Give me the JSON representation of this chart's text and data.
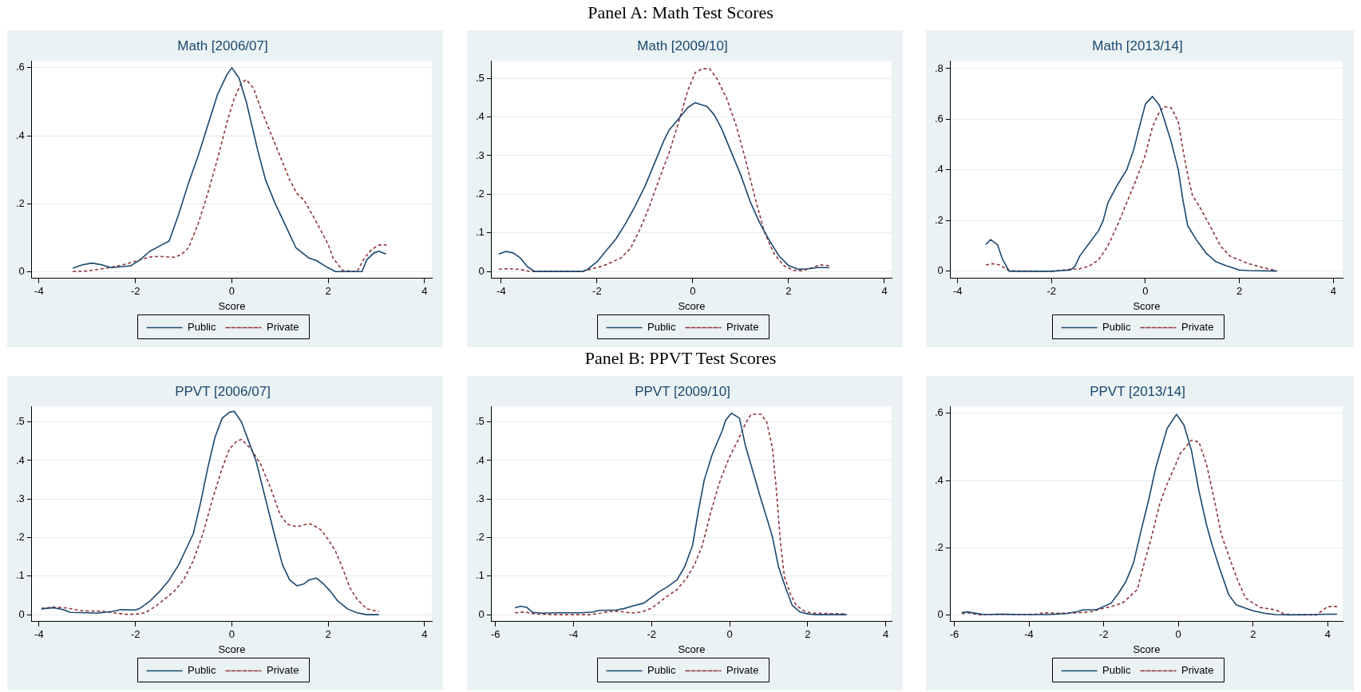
{
  "chart_data": [
    {
      "type": "line",
      "title": "Math [2006/07]",
      "xlabel": "Score",
      "annotations": [
        "Panel A: Math Test Scores"
      ],
      "xlim": [
        -4.15,
        4.15
      ],
      "xticks": [
        -4,
        -2,
        0,
        2,
        4
      ],
      "ylim": [
        -0.02,
        0.62
      ],
      "yticks": [
        {
          "value": 0,
          "label": "0"
        },
        {
          "value": 0.2,
          "label": ".2"
        },
        {
          "value": 0.4,
          "label": ".4"
        },
        {
          "value": 0.6,
          "label": ".6"
        }
      ],
      "grid": "y",
      "legend": "bottom",
      "series": [
        {
          "name": "Public",
          "color": "#1a476f",
          "line_style": "solid",
          "x": [
            -3.3,
            -3.1,
            -2.9,
            -2.7,
            -2.5,
            -2.1,
            -1.9,
            -1.7,
            -1.5,
            -1.3,
            -1.1,
            -0.9,
            -0.7,
            -0.5,
            -0.3,
            -0.1,
            0,
            0.15,
            0.3,
            0.4,
            0.55,
            0.7,
            0.9,
            1.1,
            1.33,
            1.6,
            1.75,
            1.95,
            2.15,
            2.7,
            2.8,
            2.95,
            3.05,
            3.2
          ],
          "values": [
            0.01,
            0.02,
            0.025,
            0.02,
            0.012,
            0.017,
            0.035,
            0.06,
            0.075,
            0.09,
            0.17,
            0.26,
            0.34,
            0.43,
            0.52,
            0.58,
            0.6,
            0.57,
            0.5,
            0.44,
            0.35,
            0.27,
            0.2,
            0.14,
            0.07,
            0.04,
            0.033,
            0.015,
            0,
            0,
            0.035,
            0.055,
            0.06,
            0.052
          ]
        },
        {
          "name": "Private",
          "color": "#90353b",
          "line_style": "dashed",
          "x": [
            -3.3,
            -3.0,
            -2.6,
            -2.2,
            -1.9,
            -1.7,
            -1.5,
            -1.2,
            -1.05,
            -0.9,
            -0.7,
            -0.5,
            -0.3,
            -0.1,
            0.05,
            0.2,
            0.3,
            0.45,
            0.6,
            0.8,
            1.0,
            1.2,
            1.35,
            1.5,
            1.7,
            1.85,
            2.0,
            2.1,
            2.3,
            2.6,
            2.75,
            2.9,
            3.05,
            3.15,
            3.25
          ],
          "values": [
            0,
            0.002,
            0.01,
            0.022,
            0.035,
            0.043,
            0.045,
            0.042,
            0.05,
            0.07,
            0.14,
            0.23,
            0.33,
            0.44,
            0.51,
            0.555,
            0.565,
            0.54,
            0.48,
            0.41,
            0.34,
            0.27,
            0.23,
            0.21,
            0.16,
            0.12,
            0.08,
            0.04,
            0.003,
            0,
            0.04,
            0.065,
            0.078,
            0.08,
            0.075
          ]
        }
      ]
    },
    {
      "type": "line",
      "title": "Math [2009/10]",
      "xlabel": "Score",
      "xlim": [
        -4.2,
        4.15
      ],
      "xticks": [
        -4,
        -2,
        0,
        2,
        4
      ],
      "ylim": [
        -0.018,
        0.545
      ],
      "yticks": [
        {
          "value": 0,
          "label": "0"
        },
        {
          "value": 0.1,
          "label": ".1"
        },
        {
          "value": 0.2,
          "label": ".2"
        },
        {
          "value": 0.3,
          "label": ".3"
        },
        {
          "value": 0.4,
          "label": ".4"
        },
        {
          "value": 0.5,
          "label": ".5"
        }
      ],
      "grid": "y",
      "legend": "bottom",
      "series": [
        {
          "name": "Public",
          "color": "#1a476f",
          "line_style": "solid",
          "x": [
            -4.05,
            -3.9,
            -3.75,
            -3.6,
            -3.45,
            -3.3,
            -2.3,
            -2.2,
            -2.0,
            -1.8,
            -1.6,
            -1.4,
            -1.2,
            -1.0,
            -0.8,
            -0.6,
            -0.5,
            -0.3,
            -0.1,
            0.05,
            0.3,
            0.45,
            0.6,
            0.8,
            1.0,
            1.2,
            1.4,
            1.6,
            1.8,
            2.0,
            2.2,
            2.4,
            2.6,
            2.85
          ],
          "values": [
            0.045,
            0.052,
            0.048,
            0.035,
            0.012,
            0,
            0,
            0.005,
            0.025,
            0.055,
            0.085,
            0.125,
            0.17,
            0.22,
            0.28,
            0.34,
            0.365,
            0.395,
            0.425,
            0.437,
            0.427,
            0.405,
            0.37,
            0.31,
            0.25,
            0.18,
            0.125,
            0.08,
            0.04,
            0.015,
            0.006,
            0.007,
            0.01,
            0.01
          ]
        },
        {
          "name": "Private",
          "color": "#90353b",
          "line_style": "dashed",
          "x": [
            -4.05,
            -3.8,
            -3.6,
            -3.4,
            -2.3,
            -2.0,
            -1.8,
            -1.5,
            -1.3,
            -1.1,
            -0.9,
            -0.7,
            -0.5,
            -0.3,
            -0.1,
            0.05,
            0.2,
            0.35,
            0.5,
            0.7,
            0.9,
            1.1,
            1.3,
            1.5,
            1.7,
            1.9,
            2.1,
            2.3,
            2.5,
            2.65,
            2.85
          ],
          "values": [
            0.006,
            0.007,
            0.005,
            0,
            0,
            0.01,
            0.018,
            0.035,
            0.06,
            0.11,
            0.17,
            0.24,
            0.305,
            0.385,
            0.47,
            0.515,
            0.525,
            0.525,
            0.5,
            0.45,
            0.38,
            0.29,
            0.19,
            0.1,
            0.045,
            0.015,
            0.003,
            0.002,
            0.01,
            0.017,
            0.015
          ]
        }
      ]
    },
    {
      "type": "line",
      "title": "Math [2013/14]",
      "xlabel": "Score",
      "xlim": [
        -4.15,
        4.2
      ],
      "xticks": [
        -4,
        -2,
        0,
        2,
        4
      ],
      "ylim": [
        -0.028,
        0.83
      ],
      "yticks": [
        {
          "value": 0,
          "label": "0"
        },
        {
          "value": 0.2,
          "label": ".2"
        },
        {
          "value": 0.4,
          "label": ".4"
        },
        {
          "value": 0.6,
          "label": ".6"
        },
        {
          "value": 0.8,
          "label": ".8"
        }
      ],
      "grid": "y",
      "legend": "bottom",
      "series": [
        {
          "name": "Public",
          "color": "#1a476f",
          "line_style": "solid",
          "x": [
            -3.4,
            -3.3,
            -3.15,
            -3.05,
            -2.9,
            -2.0,
            -1.6,
            -1.5,
            -1.4,
            -1.2,
            -1.0,
            -0.9,
            -0.8,
            -0.6,
            -0.4,
            -0.25,
            -0.1,
            0.0,
            0.15,
            0.3,
            0.4,
            0.55,
            0.7,
            0.8,
            0.9,
            1.1,
            1.3,
            1.5,
            1.7,
            2.0,
            2.2,
            2.8
          ],
          "values": [
            0.105,
            0.125,
            0.105,
            0.05,
            0,
            0,
            0.005,
            0.02,
            0.06,
            0.11,
            0.16,
            0.2,
            0.27,
            0.34,
            0.4,
            0.48,
            0.59,
            0.66,
            0.69,
            0.655,
            0.6,
            0.51,
            0.4,
            0.28,
            0.18,
            0.12,
            0.07,
            0.038,
            0.023,
            0.005,
            0.003,
            0.001
          ]
        },
        {
          "name": "Private",
          "color": "#90353b",
          "line_style": "dashed",
          "x": [
            -3.4,
            -3.25,
            -3.1,
            -2.9,
            -2.0,
            -1.6,
            -1.4,
            -1.2,
            -1.0,
            -0.8,
            -0.6,
            -0.4,
            -0.2,
            0.0,
            0.15,
            0.3,
            0.4,
            0.55,
            0.7,
            0.8,
            0.9,
            1.0,
            1.2,
            1.4,
            1.6,
            1.8,
            2.0,
            2.2,
            2.5,
            2.8
          ],
          "values": [
            0.025,
            0.03,
            0.025,
            0.002,
            0,
            0.008,
            0.01,
            0.02,
            0.045,
            0.1,
            0.18,
            0.27,
            0.36,
            0.46,
            0.57,
            0.63,
            0.65,
            0.645,
            0.59,
            0.48,
            0.38,
            0.3,
            0.24,
            0.17,
            0.1,
            0.06,
            0.045,
            0.03,
            0.015,
            0.002
          ]
        }
      ]
    },
    {
      "type": "line",
      "title": "PPVT [2006/07]",
      "xlabel": "Score",
      "annotations": [
        "Panel B: PPVT Test Scores"
      ],
      "xlim": [
        -4.15,
        4.15
      ],
      "xticks": [
        -4,
        -2,
        0,
        2,
        4
      ],
      "ylim": [
        -0.018,
        0.54
      ],
      "yticks": [
        {
          "value": 0,
          "label": "0"
        },
        {
          "value": 0.1,
          "label": ".1"
        },
        {
          "value": 0.2,
          "label": ".2"
        },
        {
          "value": 0.3,
          "label": ".3"
        },
        {
          "value": 0.4,
          "label": ".4"
        },
        {
          "value": 0.5,
          "label": ".5"
        }
      ],
      "grid": "y",
      "legend": "bottom",
      "series": [
        {
          "name": "Public",
          "color": "#1a476f",
          "line_style": "solid",
          "x": [
            -3.95,
            -3.7,
            -3.5,
            -3.35,
            -3.0,
            -2.8,
            -2.5,
            -2.3,
            -2.0,
            -1.9,
            -1.7,
            -1.5,
            -1.3,
            -1.1,
            -0.95,
            -0.8,
            -0.65,
            -0.5,
            -0.35,
            -0.2,
            -0.05,
            0.05,
            0.2,
            0.35,
            0.5,
            0.7,
            0.9,
            1.05,
            1.2,
            1.35,
            1.5,
            1.6,
            1.75,
            1.9,
            2.05,
            2.2,
            2.4,
            2.6,
            2.8,
            3.05
          ],
          "values": [
            0.015,
            0.018,
            0.013,
            0.006,
            0.005,
            0.004,
            0.008,
            0.013,
            0.012,
            0.017,
            0.035,
            0.06,
            0.09,
            0.13,
            0.17,
            0.21,
            0.29,
            0.38,
            0.46,
            0.51,
            0.525,
            0.528,
            0.5,
            0.45,
            0.4,
            0.3,
            0.2,
            0.13,
            0.09,
            0.075,
            0.08,
            0.09,
            0.095,
            0.08,
            0.06,
            0.035,
            0.015,
            0.005,
            0,
            0
          ]
        },
        {
          "name": "Private",
          "color": "#90353b",
          "line_style": "dashed",
          "x": [
            -3.95,
            -3.7,
            -3.4,
            -3.1,
            -2.7,
            -2.4,
            -2.2,
            -2.0,
            -1.8,
            -1.6,
            -1.4,
            -1.2,
            -1.0,
            -0.8,
            -0.6,
            -0.4,
            -0.2,
            -0.05,
            0.1,
            0.2,
            0.4,
            0.6,
            0.8,
            1.0,
            1.15,
            1.35,
            1.55,
            1.65,
            1.85,
            2.0,
            2.15,
            2.3,
            2.45,
            2.6,
            2.8,
            3.05
          ],
          "values": [
            0.016,
            0.02,
            0.017,
            0.01,
            0.009,
            0.004,
            0.001,
            0.001,
            0.005,
            0.02,
            0.04,
            0.06,
            0.09,
            0.14,
            0.21,
            0.3,
            0.38,
            0.43,
            0.45,
            0.455,
            0.43,
            0.39,
            0.33,
            0.26,
            0.235,
            0.228,
            0.235,
            0.235,
            0.22,
            0.195,
            0.165,
            0.12,
            0.07,
            0.04,
            0.015,
            0.008
          ]
        }
      ]
    },
    {
      "type": "line",
      "title": "PPVT [2009/10]",
      "xlabel": "Score",
      "xlim": [
        -6.1,
        4.15
      ],
      "xticks": [
        -6,
        -4,
        -2,
        0,
        2,
        4
      ],
      "ylim": [
        -0.018,
        0.54
      ],
      "yticks": [
        {
          "value": 0,
          "label": "0"
        },
        {
          "value": 0.1,
          "label": ".1"
        },
        {
          "value": 0.2,
          "label": ".2"
        },
        {
          "value": 0.3,
          "label": ".3"
        },
        {
          "value": 0.4,
          "label": ".4"
        },
        {
          "value": 0.5,
          "label": ".5"
        }
      ],
      "grid": "y",
      "legend": "bottom",
      "series": [
        {
          "name": "Public",
          "color": "#1a476f",
          "line_style": "solid",
          "x": [
            -5.5,
            -5.35,
            -5.2,
            -5.05,
            -4.8,
            -4.4,
            -3.8,
            -3.5,
            -3.35,
            -2.9,
            -2.7,
            -2.5,
            -2.2,
            -2.0,
            -1.8,
            -1.6,
            -1.35,
            -1.15,
            -0.95,
            -0.8,
            -0.65,
            -0.45,
            -0.2,
            -0.1,
            0.05,
            0.25,
            0.4,
            0.6,
            0.8,
            1.0,
            1.1,
            1.25,
            1.45,
            1.6,
            1.8,
            2.0,
            2.2,
            3.0
          ],
          "values": [
            0.018,
            0.022,
            0.019,
            0.006,
            0.004,
            0.005,
            0.005,
            0.007,
            0.011,
            0.012,
            0.016,
            0.022,
            0.03,
            0.045,
            0.06,
            0.072,
            0.09,
            0.125,
            0.18,
            0.27,
            0.35,
            0.415,
            0.475,
            0.505,
            0.523,
            0.51,
            0.44,
            0.37,
            0.3,
            0.235,
            0.2,
            0.125,
            0.065,
            0.025,
            0.007,
            0.002,
            0,
            0
          ]
        },
        {
          "name": "Private",
          "color": "#90353b",
          "line_style": "dashed",
          "x": [
            -5.5,
            -5.25,
            -5.0,
            -4.5,
            -3.6,
            -3.3,
            -3.1,
            -2.9,
            -2.7,
            -2.5,
            -2.25,
            -2.0,
            -1.8,
            -1.6,
            -1.35,
            -1.1,
            -0.9,
            -0.7,
            -0.5,
            -0.3,
            -0.2,
            0.0,
            0.2,
            0.4,
            0.55,
            0.8,
            0.95,
            1.1,
            1.2,
            1.3,
            1.4,
            1.55,
            1.7,
            1.9,
            2.1,
            2.5,
            3.0
          ],
          "values": [
            0.005,
            0.007,
            0.002,
            0,
            0,
            0.004,
            0.008,
            0.009,
            0.007,
            0.004,
            0.007,
            0.017,
            0.032,
            0.048,
            0.065,
            0.095,
            0.13,
            0.18,
            0.26,
            0.33,
            0.36,
            0.41,
            0.45,
            0.495,
            0.52,
            0.52,
            0.5,
            0.43,
            0.32,
            0.19,
            0.1,
            0.055,
            0.025,
            0.01,
            0.004,
            0.003,
            0.002
          ]
        }
      ]
    },
    {
      "type": "line",
      "title": "PPVT [2013/14]",
      "xlabel": "Score",
      "xlim": [
        -6.1,
        4.4
      ],
      "xticks": [
        -6,
        -4,
        -2,
        0,
        2,
        4
      ],
      "ylim": [
        -0.02,
        0.62
      ],
      "yticks": [
        {
          "value": 0,
          "label": "0"
        },
        {
          "value": 0.2,
          "label": ".2"
        },
        {
          "value": 0.4,
          "label": ".4"
        },
        {
          "value": 0.6,
          "label": ".6"
        }
      ],
      "grid": "y",
      "legend": "bottom",
      "series": [
        {
          "name": "Public",
          "color": "#1a476f",
          "line_style": "solid",
          "x": [
            -5.8,
            -5.65,
            -5.5,
            -5.2,
            -4.8,
            -4.2,
            -3.5,
            -3.0,
            -2.7,
            -2.55,
            -2.2,
            -2.0,
            -1.8,
            -1.6,
            -1.4,
            -1.2,
            -1.0,
            -0.8,
            -0.6,
            -0.3,
            -0.05,
            0.15,
            0.35,
            0.55,
            0.75,
            0.9,
            1.1,
            1.35,
            1.55,
            1.8,
            2.0,
            2.3,
            2.6,
            3.0,
            3.6,
            4.0,
            4.25
          ],
          "values": [
            0.007,
            0.009,
            0.006,
            0.001,
            0.002,
            0.001,
            0.001,
            0.004,
            0.01,
            0.015,
            0.015,
            0.025,
            0.035,
            0.065,
            0.1,
            0.155,
            0.25,
            0.34,
            0.44,
            0.555,
            0.597,
            0.565,
            0.49,
            0.37,
            0.27,
            0.21,
            0.14,
            0.06,
            0.03,
            0.02,
            0.012,
            0.005,
            0.001,
            0,
            0.001,
            0.002,
            0.002
          ]
        },
        {
          "name": "Private",
          "color": "#90353b",
          "line_style": "dashed",
          "x": [
            -5.8,
            -5.6,
            -5.3,
            -4.8,
            -4.2,
            -3.8,
            -3.6,
            -3.2,
            -2.8,
            -2.6,
            -2.3,
            -2.1,
            -1.8,
            -1.5,
            -1.3,
            -1.1,
            -0.9,
            -0.7,
            -0.5,
            -0.3,
            -0.1,
            0.05,
            0.2,
            0.35,
            0.55,
            0.75,
            0.95,
            1.15,
            1.4,
            1.6,
            1.8,
            2.0,
            2.2,
            2.6,
            2.85,
            3.2,
            3.7,
            4.0,
            4.25
          ],
          "values": [
            0.004,
            0.006,
            0,
            0.002,
            0.001,
            0.002,
            0.006,
            0.005,
            0.006,
            0.007,
            0.01,
            0.017,
            0.025,
            0.035,
            0.055,
            0.075,
            0.16,
            0.24,
            0.33,
            0.39,
            0.44,
            0.48,
            0.5,
            0.52,
            0.515,
            0.45,
            0.35,
            0.24,
            0.16,
            0.1,
            0.05,
            0.035,
            0.022,
            0.015,
            0.002,
            0,
            0,
            0.025,
            0.025
          ]
        }
      ]
    }
  ]
}
